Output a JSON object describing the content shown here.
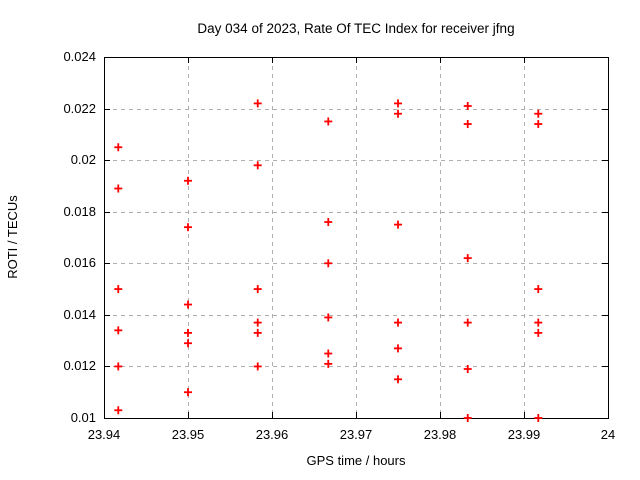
{
  "chart_data": {
    "type": "scatter",
    "title": "Day 034 of 2023, Rate Of TEC Index for receiver jfng",
    "xlabel": "GPS time / hours",
    "ylabel": "ROTI / TECUs",
    "xlim": [
      23.94,
      24
    ],
    "ylim": [
      0.01,
      0.024
    ],
    "grid": true,
    "legend": "none",
    "marker": "plus",
    "colors": {
      "marker": "#ff0000",
      "grid": "#b0b0b0",
      "frame": "#000000",
      "background": "#ffffff",
      "text": "#000000"
    },
    "x_ticks": [
      {
        "value": 23.94,
        "label": "23.94"
      },
      {
        "value": 23.95,
        "label": "23.95"
      },
      {
        "value": 23.96,
        "label": "23.96"
      },
      {
        "value": 23.97,
        "label": "23.97"
      },
      {
        "value": 23.98,
        "label": "23.98"
      },
      {
        "value": 23.99,
        "label": "23.99"
      },
      {
        "value": 24,
        "label": "24"
      }
    ],
    "y_ticks": [
      {
        "value": 0.01,
        "label": "0.01"
      },
      {
        "value": 0.012,
        "label": "0.012"
      },
      {
        "value": 0.014,
        "label": "0.014"
      },
      {
        "value": 0.016,
        "label": "0.016"
      },
      {
        "value": 0.018,
        "label": "0.018"
      },
      {
        "value": 0.02,
        "label": "0.02"
      },
      {
        "value": 0.022,
        "label": "0.022"
      },
      {
        "value": 0.024,
        "label": "0.024"
      }
    ],
    "series": [
      {
        "points": [
          [
            23.9417,
            0.0103
          ],
          [
            23.9417,
            0.012
          ],
          [
            23.9417,
            0.0134
          ],
          [
            23.9417,
            0.015
          ],
          [
            23.9417,
            0.0189
          ],
          [
            23.9417,
            0.0205
          ],
          [
            23.95,
            0.011
          ],
          [
            23.95,
            0.0129
          ],
          [
            23.95,
            0.0133
          ],
          [
            23.95,
            0.0144
          ],
          [
            23.95,
            0.0174
          ],
          [
            23.95,
            0.0192
          ],
          [
            23.9583,
            0.012
          ],
          [
            23.9583,
            0.0133
          ],
          [
            23.9583,
            0.0137
          ],
          [
            23.9583,
            0.015
          ],
          [
            23.9583,
            0.0198
          ],
          [
            23.9583,
            0.0222
          ],
          [
            23.9667,
            0.0121
          ],
          [
            23.9667,
            0.0125
          ],
          [
            23.9667,
            0.0139
          ],
          [
            23.9667,
            0.016
          ],
          [
            23.9667,
            0.0176
          ],
          [
            23.9667,
            0.0215
          ],
          [
            23.975,
            0.0115
          ],
          [
            23.975,
            0.0127
          ],
          [
            23.975,
            0.0137
          ],
          [
            23.975,
            0.0175
          ],
          [
            23.975,
            0.0218
          ],
          [
            23.975,
            0.0222
          ],
          [
            23.9833,
            0.01
          ],
          [
            23.9833,
            0.0119
          ],
          [
            23.9833,
            0.0137
          ],
          [
            23.9833,
            0.0162
          ],
          [
            23.9833,
            0.0214
          ],
          [
            23.9833,
            0.0221
          ],
          [
            23.9917,
            0.01
          ],
          [
            23.9917,
            0.0133
          ],
          [
            23.9917,
            0.0137
          ],
          [
            23.9917,
            0.015
          ],
          [
            23.9917,
            0.0214
          ],
          [
            23.9917,
            0.0218
          ]
        ]
      }
    ]
  }
}
